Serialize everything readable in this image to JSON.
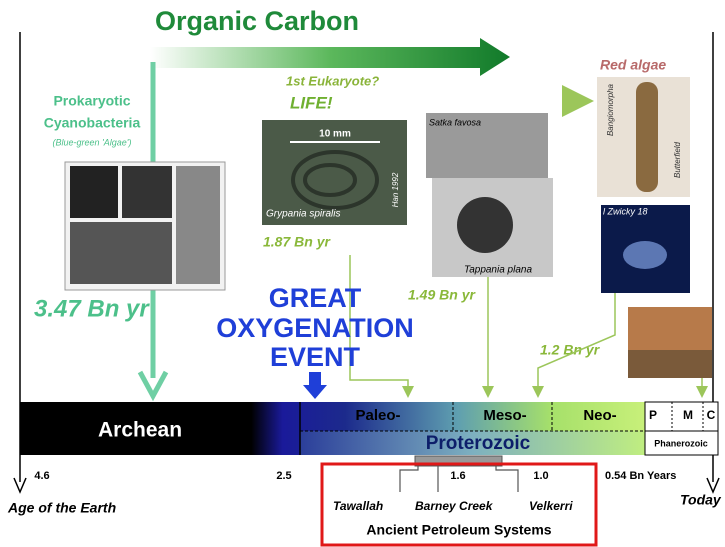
{
  "header": {
    "title": "Organic Carbon"
  },
  "prokaryote": {
    "title": [
      "Prokaryotic",
      "Cyanobacteria"
    ],
    "subtitle": "(Blue-green 'Algae')",
    "age": "3.47 Bn yr"
  },
  "eukaryote": {
    "label": "1st Eukaryote?",
    "life": "LIFE!"
  },
  "red_algae": {
    "title": "Red algae",
    "genus": "Bangiomorpha",
    "credit": "Butterfield"
  },
  "grypania": {
    "scale": "10 mm",
    "name": "Grypania spiralis",
    "credit": "Han 1992",
    "age": "1.87 Bn yr"
  },
  "acritarchs": {
    "satka": "Satka favosa",
    "tappania": "Tappania plana",
    "age": "1.49 Bn yr"
  },
  "galaxy": {
    "label": "l Zwicky 18",
    "age": "1.2 Bn yr"
  },
  "oxygenation": [
    "GREAT",
    "OXYGENATION",
    "EVENT"
  ],
  "timeline": {
    "eons": {
      "archean": "Archean",
      "proterozoic": "Proterozoic",
      "phanerozoic": "Phanerozoic"
    },
    "eras": {
      "paleo": "Paleo-",
      "meso": "Meso-",
      "neo": "Neo-",
      "p": "P",
      "m": "M",
      "c": "C"
    },
    "ticks": [
      "4.6",
      "2.5",
      "1.6",
      "1.0",
      "0.54 Bn Years"
    ],
    "start": "Age of the Earth",
    "end": "Today"
  },
  "petroleum": {
    "systems": [
      "Tawallah",
      "Barney Creek",
      "Velkerri"
    ],
    "title": "Ancient Petroleum Systems"
  }
}
